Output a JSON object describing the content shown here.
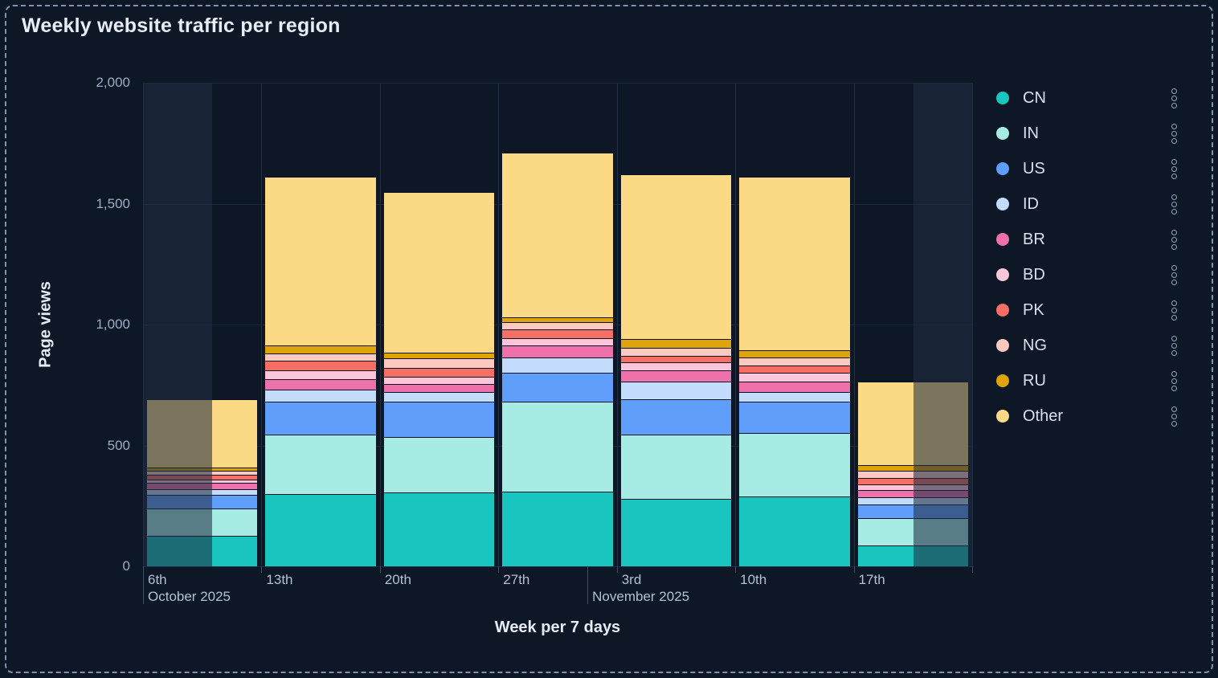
{
  "page": {
    "title": "Weekly website traffic per region"
  },
  "axes": {
    "y_title": "Page views",
    "x_title": "Week per 7 days",
    "y_tick_labels": [
      "0",
      "500",
      "1,000",
      "1,500",
      "2,000"
    ],
    "x_tick_labels": [
      "6th",
      "13th",
      "20th",
      "27th",
      "3rd",
      "10th",
      "17th"
    ],
    "month_labels": [
      "October 2025",
      "November 2025"
    ]
  },
  "legend": {
    "items": [
      "CN",
      "IN",
      "US",
      "ID",
      "BR",
      "BD",
      "PK",
      "NG",
      "RU",
      "Other"
    ],
    "menu_icon": "kebab-menu-icon"
  },
  "colors": {
    "background": "#0D1725",
    "selection_border": "#7E93B2",
    "CN": "#18C5BF",
    "IN": "#A7ECE4",
    "US": "#5F9FFB",
    "ID": "#C3DCFB",
    "BR": "#EF71AB",
    "BD": "#FBC6DA",
    "PK": "#F66E64",
    "NG": "#FCC9C0",
    "RU": "#E0A40B",
    "Other": "#FBD985"
  },
  "chart_data": {
    "type": "bar",
    "stacked": true,
    "title": "Weekly website traffic per region",
    "xlabel": "Week per 7 days",
    "ylabel": "Page views",
    "ylim": [
      0,
      2000
    ],
    "yticks": [
      0,
      500,
      1000,
      1500,
      2000
    ],
    "ytick_labels": [
      "0",
      "500",
      "1,000",
      "1,500",
      "2,000"
    ],
    "categories": [
      "6th",
      "13th",
      "20th",
      "27th",
      "3rd",
      "10th",
      "17th"
    ],
    "x_axis_months": [
      {
        "label": "October 2025",
        "line_fraction": 0.0
      },
      {
        "label": "November 2025",
        "line_fraction": 0.536
      }
    ],
    "grid": true,
    "legend_position": "right",
    "series": [
      {
        "name": "CN",
        "color": "#18C5BF",
        "values": [
          125,
          300,
          305,
          310,
          280,
          290,
          85
        ]
      },
      {
        "name": "IN",
        "color": "#A7ECE4",
        "values": [
          115,
          245,
          230,
          370,
          265,
          260,
          115
        ]
      },
      {
        "name": "US",
        "color": "#5F9FFB",
        "values": [
          55,
          135,
          145,
          120,
          145,
          130,
          55
        ]
      },
      {
        "name": "ID",
        "color": "#C3DCFB",
        "values": [
          25,
          50,
          40,
          65,
          75,
          40,
          30
        ]
      },
      {
        "name": "BR",
        "color": "#EF71AB",
        "values": [
          25,
          45,
          35,
          50,
          45,
          45,
          30
        ]
      },
      {
        "name": "BD",
        "color": "#FBC6DA",
        "values": [
          15,
          35,
          30,
          30,
          35,
          35,
          25
        ]
      },
      {
        "name": "PK",
        "color": "#F66E64",
        "values": [
          20,
          40,
          35,
          35,
          25,
          30,
          25
        ]
      },
      {
        "name": "NG",
        "color": "#FCC9C0",
        "values": [
          15,
          30,
          40,
          30,
          35,
          35,
          30
        ]
      },
      {
        "name": "RU",
        "color": "#E0A40B",
        "values": [
          15,
          35,
          25,
          20,
          35,
          30,
          25
        ]
      },
      {
        "name": "Other",
        "color": "#FBD985",
        "values": [
          280,
          695,
          665,
          680,
          680,
          715,
          345
        ]
      }
    ],
    "stack_totals": [
      690,
      1610,
      1550,
      1710,
      1620,
      1610,
      765
    ],
    "partial_week_dimmed_bands": {
      "left_fraction": 0.083,
      "right_fraction": 0.071
    }
  }
}
